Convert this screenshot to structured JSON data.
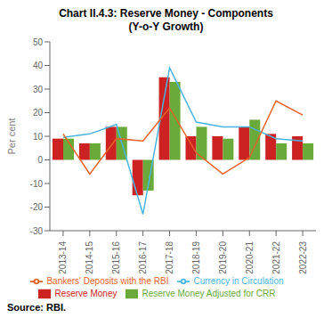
{
  "chart_data": {
    "type": "bar",
    "title": "Chart II.4.3: Reserve Money - Components\n(Y-o-Y Growth)",
    "ylabel": "Per cent",
    "source": "Source: RBI.",
    "categories": [
      "2013-14",
      "2014-15",
      "2015-16",
      "2016-17",
      "2017-18",
      "2018-19",
      "2019-20",
      "2020-21",
      "2021-22",
      "2022-23"
    ],
    "series": [
      {
        "name": "Reserve Money",
        "type": "bar",
        "color": "#cc2222",
        "values": [
          9,
          7,
          14,
          -15,
          35,
          10,
          10,
          14,
          11,
          10
        ]
      },
      {
        "name": "Reserve Money Adjusted for CRR",
        "type": "bar",
        "color": "#6aaa3a",
        "values": [
          9,
          7,
          14,
          -13,
          33,
          14,
          9,
          17,
          7,
          7
        ]
      },
      {
        "name": "Currency in Circulation",
        "type": "line",
        "color": "#4ab5e0",
        "values": [
          9.5,
          11,
          15,
          -23,
          39,
          16,
          14,
          14,
          9,
          8
        ]
      },
      {
        "name": "Bankers' Deposits with the RBI",
        "type": "line",
        "color": "#e8612a",
        "values": [
          11,
          -6,
          9,
          8,
          22,
          3,
          -6,
          1,
          25,
          19
        ]
      }
    ],
    "ylim": [
      -30,
      50
    ],
    "yticks": [
      -30,
      -20,
      -10,
      0,
      10,
      20,
      30,
      40,
      50
    ],
    "grid": false,
    "legend": "bottom"
  }
}
